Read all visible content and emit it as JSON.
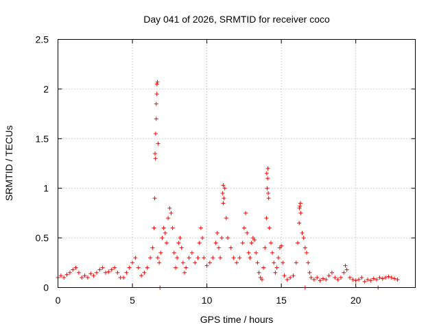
{
  "chart_data": {
    "type": "scatter",
    "title": "Day 041 of 2026, SRMTID for receiver coco",
    "xlabel": "GPS time / hours",
    "ylabel": "SRMTID / TECUs",
    "xlim": [
      0,
      24
    ],
    "ylim": [
      0,
      2.5
    ],
    "xticks": [
      0,
      5,
      10,
      15,
      20
    ],
    "yticks": [
      0,
      0.5,
      1,
      1.5,
      2,
      2.5
    ],
    "xtick_labels": [
      "0",
      "5",
      "10",
      "15",
      "20"
    ],
    "ytick_labels": [
      "0",
      "0.5",
      "1",
      "1.5",
      "2",
      "2.5"
    ],
    "grid": true,
    "marker": "+",
    "color": "#ff0000",
    "series": [
      {
        "name": "SRMTID",
        "x": [
          0.0,
          0.2,
          0.4,
          0.6,
          0.8,
          1.0,
          1.2,
          1.4,
          1.6,
          1.8,
          2.0,
          2.2,
          2.4,
          2.6,
          2.8,
          3.0,
          3.2,
          3.4,
          3.6,
          3.8,
          4.0,
          4.2,
          4.4,
          4.6,
          4.8,
          5.0,
          5.2,
          5.4,
          5.6,
          5.8,
          6.0,
          6.2,
          6.35,
          6.45,
          6.5,
          6.55,
          6.6,
          6.65,
          6.7,
          6.8,
          6.9,
          7.0,
          7.1,
          7.2,
          7.3,
          7.4,
          7.5,
          7.6,
          7.7,
          7.8,
          7.9,
          8.0,
          8.1,
          8.2,
          8.3,
          8.4,
          8.5,
          8.6,
          8.8,
          9.0,
          9.2,
          9.4,
          9.5,
          9.6,
          9.7,
          9.8,
          10.0,
          10.2,
          10.4,
          10.6,
          10.7,
          10.8,
          10.9,
          11.0,
          11.1,
          11.2,
          11.3,
          11.4,
          11.6,
          11.8,
          12.0,
          12.2,
          12.4,
          12.5,
          12.6,
          12.7,
          12.8,
          12.9,
          13.0,
          13.1,
          13.2,
          13.3,
          13.4,
          13.5,
          13.6,
          13.7,
          13.8,
          13.9,
          14.0,
          14.05,
          14.1,
          14.15,
          14.2,
          14.3,
          14.4,
          14.5,
          14.6,
          14.7,
          14.8,
          14.9,
          15.0,
          15.1,
          15.2,
          15.4,
          15.6,
          15.8,
          16.0,
          16.1,
          16.2,
          16.25,
          16.3,
          16.4,
          16.5,
          16.6,
          16.7,
          16.8,
          16.9,
          17.0,
          17.2,
          17.4,
          17.6,
          17.8,
          18.0,
          18.2,
          18.4,
          18.6,
          18.8,
          19.0,
          19.2,
          19.3,
          19.4,
          19.6,
          19.8,
          20.0,
          20.2,
          20.4,
          20.6,
          20.8,
          21.0,
          21.2,
          21.4,
          21.6,
          21.8,
          22.0,
          22.2,
          22.4,
          22.6,
          22.8,
          6.52,
          6.56,
          6.6,
          6.64,
          6.68,
          6.72,
          14.02,
          14.08,
          14.12,
          11.06,
          11.1,
          11.14,
          16.22,
          16.28,
          6.85,
          16.6,
          21.5
        ],
        "y": [
          0.1,
          0.12,
          0.1,
          0.13,
          0.15,
          0.18,
          0.2,
          0.15,
          0.1,
          0.12,
          0.1,
          0.14,
          0.12,
          0.15,
          0.18,
          0.2,
          0.15,
          0.16,
          0.18,
          0.2,
          0.15,
          0.1,
          0.1,
          0.15,
          0.2,
          0.25,
          0.3,
          0.2,
          0.12,
          0.15,
          0.2,
          0.3,
          0.4,
          0.6,
          0.9,
          1.3,
          1.7,
          2.05,
          0.3,
          0.25,
          0.35,
          0.5,
          0.6,
          0.55,
          0.45,
          0.7,
          0.8,
          0.75,
          0.6,
          0.35,
          0.2,
          0.3,
          0.45,
          0.5,
          0.4,
          0.25,
          0.15,
          0.2,
          0.3,
          0.35,
          0.25,
          0.3,
          0.45,
          0.6,
          0.5,
          0.3,
          0.22,
          0.25,
          0.3,
          0.45,
          0.55,
          0.4,
          0.3,
          0.5,
          0.85,
          1.0,
          0.7,
          0.5,
          0.4,
          0.3,
          0.25,
          0.3,
          0.45,
          0.6,
          0.75,
          0.55,
          0.35,
          0.3,
          0.45,
          0.5,
          0.48,
          0.35,
          0.25,
          0.15,
          0.1,
          0.08,
          0.2,
          0.4,
          0.7,
          1.0,
          1.2,
          0.9,
          0.6,
          0.45,
          0.35,
          0.25,
          0.15,
          0.2,
          0.3,
          0.4,
          0.42,
          0.25,
          0.12,
          0.08,
          0.1,
          0.12,
          0.25,
          0.45,
          0.65,
          0.82,
          0.75,
          0.55,
          0.5,
          0.4,
          0.35,
          0.25,
          0.15,
          0.1,
          0.08,
          0.1,
          0.07,
          0.09,
          0.08,
          0.12,
          0.15,
          0.1,
          0.08,
          0.1,
          0.15,
          0.22,
          0.18,
          0.1,
          0.08,
          0.07,
          0.08,
          0.1,
          0.06,
          0.08,
          0.07,
          0.09,
          0.08,
          0.1,
          0.09,
          0.1,
          0.11,
          0.1,
          0.09,
          0.08,
          1.35,
          1.55,
          1.85,
          1.95,
          2.07,
          1.45,
          1.15,
          1.1,
          0.95,
          0.95,
          1.03,
          0.9,
          0.8,
          0.85,
          0.0,
          0.0,
          0.0
        ]
      }
    ]
  }
}
